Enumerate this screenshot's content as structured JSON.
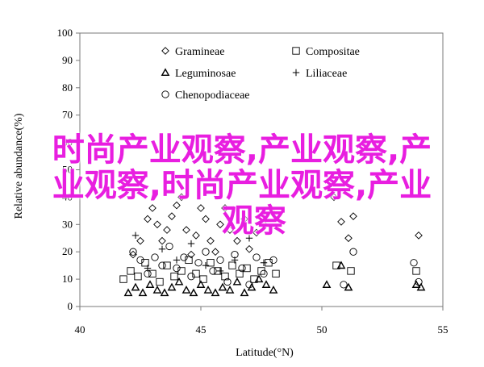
{
  "chart_data": {
    "type": "scatter",
    "xlabel": "Latitude(°N)",
    "ylabel": "Relative abundance(%)",
    "xlim": [
      40,
      55
    ],
    "ylim": [
      0,
      100
    ],
    "xticks": [
      40,
      45,
      50,
      55
    ],
    "yticks": [
      0,
      10,
      20,
      30,
      40,
      50,
      60,
      70,
      80,
      90,
      100
    ],
    "grid": false,
    "legend_position": "top-center",
    "series": [
      {
        "name": "Gramineae",
        "marker": "diamond",
        "points": [
          [
            42.2,
            19
          ],
          [
            42.5,
            24
          ],
          [
            42.8,
            32
          ],
          [
            43.0,
            36
          ],
          [
            43.2,
            30
          ],
          [
            43.4,
            24
          ],
          [
            43.6,
            28
          ],
          [
            43.8,
            33
          ],
          [
            44.0,
            37
          ],
          [
            44.2,
            40
          ],
          [
            44.4,
            28
          ],
          [
            44.6,
            19
          ],
          [
            44.8,
            26
          ],
          [
            45.0,
            36
          ],
          [
            45.2,
            32
          ],
          [
            45.4,
            24
          ],
          [
            45.6,
            20
          ],
          [
            45.8,
            30
          ],
          [
            46.0,
            36
          ],
          [
            46.2,
            28
          ],
          [
            46.5,
            24
          ],
          [
            46.8,
            32
          ],
          [
            47.0,
            21
          ],
          [
            47.3,
            27
          ],
          [
            47.6,
            30
          ],
          [
            48.0,
            34
          ],
          [
            50.5,
            40
          ],
          [
            50.8,
            31
          ],
          [
            51.1,
            25
          ],
          [
            51.3,
            33
          ],
          [
            54.0,
            26
          ]
        ]
      },
      {
        "name": "Compositae",
        "marker": "square",
        "points": [
          [
            41.8,
            10
          ],
          [
            42.1,
            13
          ],
          [
            42.4,
            11
          ],
          [
            42.7,
            16
          ],
          [
            43.0,
            12
          ],
          [
            43.3,
            9
          ],
          [
            43.6,
            15
          ],
          [
            43.9,
            11
          ],
          [
            44.2,
            13
          ],
          [
            44.5,
            17
          ],
          [
            44.8,
            12
          ],
          [
            45.1,
            10
          ],
          [
            45.4,
            16
          ],
          [
            45.7,
            13
          ],
          [
            46.0,
            11
          ],
          [
            46.3,
            15
          ],
          [
            46.6,
            12
          ],
          [
            46.9,
            14
          ],
          [
            47.2,
            10
          ],
          [
            47.5,
            13
          ],
          [
            47.8,
            16
          ],
          [
            48.1,
            12
          ],
          [
            50.6,
            15
          ],
          [
            51.2,
            13
          ],
          [
            53.9,
            13
          ]
        ]
      },
      {
        "name": "Leguminosae",
        "marker": "triangle",
        "points": [
          [
            42.0,
            5
          ],
          [
            42.3,
            7
          ],
          [
            42.6,
            5
          ],
          [
            42.9,
            8
          ],
          [
            43.2,
            6
          ],
          [
            43.5,
            5
          ],
          [
            43.8,
            7
          ],
          [
            44.1,
            9
          ],
          [
            44.4,
            6
          ],
          [
            44.7,
            5
          ],
          [
            45.0,
            8
          ],
          [
            45.3,
            6
          ],
          [
            45.6,
            5
          ],
          [
            45.9,
            7
          ],
          [
            46.2,
            6
          ],
          [
            46.5,
            9
          ],
          [
            46.8,
            5
          ],
          [
            47.1,
            7
          ],
          [
            47.4,
            10
          ],
          [
            47.7,
            8
          ],
          [
            48.0,
            6
          ],
          [
            50.2,
            8
          ],
          [
            50.8,
            15
          ],
          [
            51.1,
            7
          ],
          [
            53.9,
            8
          ],
          [
            54.1,
            7
          ]
        ]
      },
      {
        "name": "Liliaceae",
        "marker": "plus",
        "points": [
          [
            42.3,
            26
          ],
          [
            42.8,
            14
          ],
          [
            43.4,
            21
          ],
          [
            44.0,
            17
          ],
          [
            44.6,
            23
          ],
          [
            45.2,
            15
          ],
          [
            45.8,
            13
          ],
          [
            46.4,
            17
          ],
          [
            47.0,
            25
          ],
          [
            47.6,
            16
          ]
        ]
      },
      {
        "name": "Chenopodiaceae",
        "marker": "circle",
        "points": [
          [
            42.2,
            20
          ],
          [
            42.5,
            17
          ],
          [
            42.8,
            12
          ],
          [
            43.1,
            18
          ],
          [
            43.4,
            15
          ],
          [
            43.7,
            22
          ],
          [
            44.0,
            14
          ],
          [
            44.3,
            18
          ],
          [
            44.6,
            11
          ],
          [
            44.9,
            16
          ],
          [
            45.2,
            20
          ],
          [
            45.5,
            13
          ],
          [
            45.8,
            17
          ],
          [
            46.1,
            9
          ],
          [
            46.4,
            19
          ],
          [
            46.7,
            14
          ],
          [
            47.0,
            8
          ],
          [
            47.3,
            18
          ],
          [
            47.6,
            12
          ],
          [
            48.0,
            17
          ],
          [
            50.9,
            8
          ],
          [
            51.3,
            20
          ],
          [
            53.8,
            16
          ],
          [
            54.0,
            9
          ]
        ]
      }
    ]
  },
  "overlay": {
    "line1": "时尚产业观察,产业观察,产",
    "line2": "业观察,时尚产业观察,产业",
    "line3": "观察"
  }
}
